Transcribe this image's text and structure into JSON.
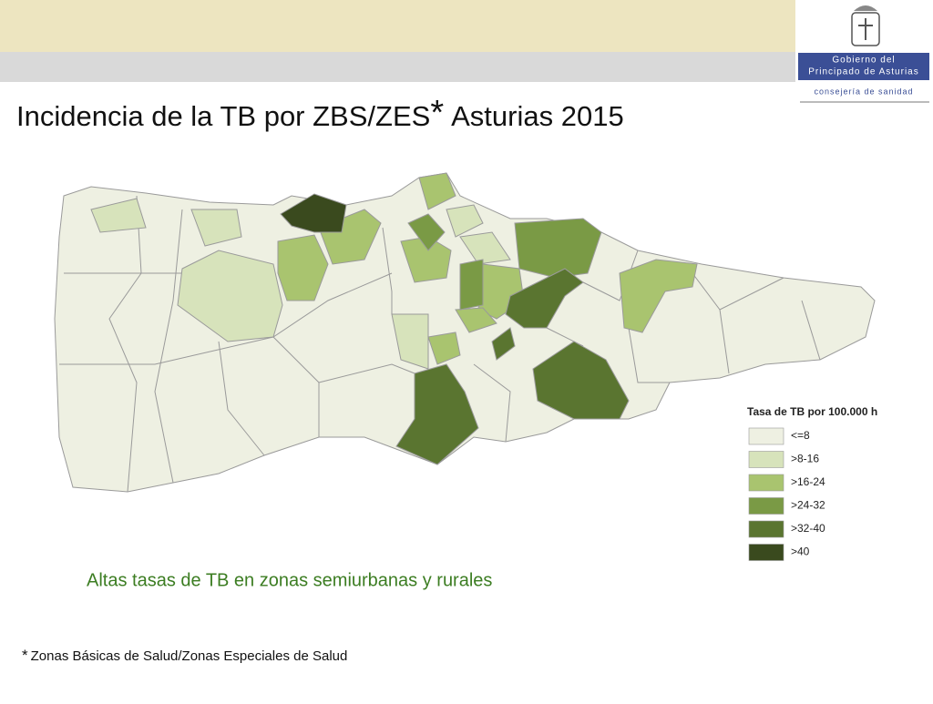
{
  "header": {
    "logo_line1": "Gobierno del",
    "logo_line2": "Principado de Asturias",
    "logo_line3": "consejería de sanidad"
  },
  "title": {
    "main": "Incidencia de la TB por ZBS/ZES",
    "mark": "*",
    "suffix": "Asturias 2015"
  },
  "legend": {
    "title": "Tasa de TB por 100.000 h",
    "items": [
      {
        "label": "<=8",
        "color": "#eef0e2"
      },
      {
        "label": ">8-16",
        "color": "#d7e3bb"
      },
      {
        "label": ">16-24",
        "color": "#a9c46f"
      },
      {
        "label": ">24-32",
        "color": "#7a9a45"
      },
      {
        "label": ">32-40",
        "color": "#5a7530"
      },
      {
        "label": ">40",
        "color": "#3a4a1e"
      }
    ]
  },
  "caption": "Altas tasas de TB en zonas semiurbanas y rurales",
  "footnote": {
    "mark": "*",
    "text": "Zonas Básicas de Salud/Zonas Especiales de Salud"
  }
}
